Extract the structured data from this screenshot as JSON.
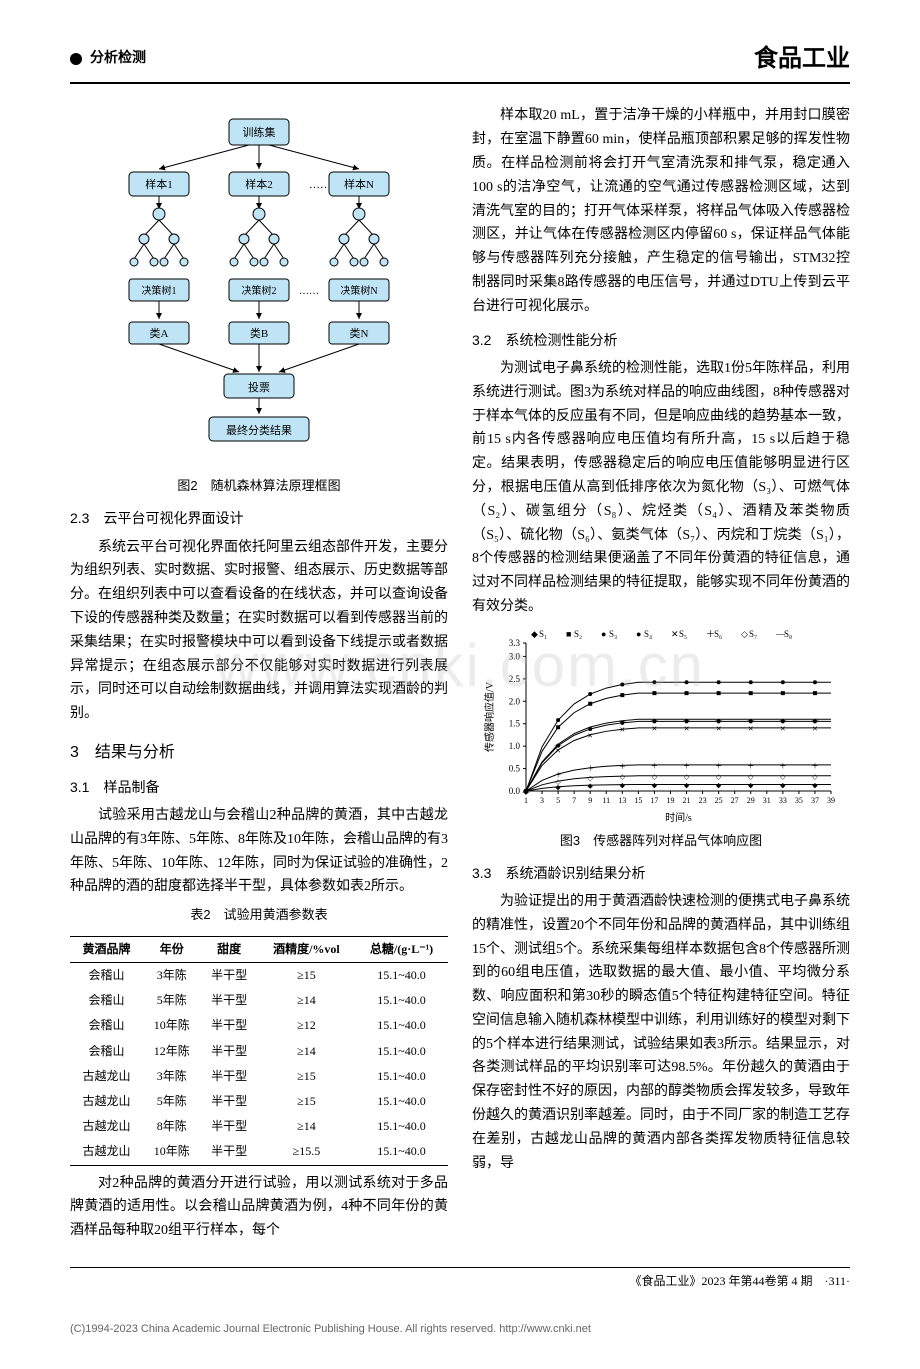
{
  "header": {
    "section": "分析检测",
    "journal": "食品工业"
  },
  "flowchart": {
    "title": "图2　随机森林算法原理框图",
    "nodes": {
      "train": "训练集",
      "sample1": "样本1",
      "sample2": "样本2",
      "sampleN": "样本N",
      "dots1": "……",
      "tree1": "决策树1",
      "tree2": "决策树2",
      "treeN": "决策树N",
      "dots2": "……",
      "classA": "类A",
      "classB": "类B",
      "classN": "类N",
      "vote": "投票",
      "result": "最终分类结果"
    },
    "node_fill": "#bfe4f5",
    "node_stroke": "#000000",
    "bg": "#ffffff",
    "fontsize": 11
  },
  "sec23": {
    "title": "2.3　云平台可视化界面设计",
    "p1": "系统云平台可视化界面依托阿里云组态部件开发，主要分为组织列表、实时数据、实时报警、组态展示、历史数据等部分。在组织列表中可以查看设备的在线状态，并可以查询设备下设的传感器种类及数量；在实时数据可以看到传感器当前的采集结果；在实时报警模块中可以看到设备下线提示或者数据异常提示；在组态展示部分不仅能够对实时数据进行列表展示，同时还可以自动绘制数据曲线，并调用算法实现酒龄的判别。"
  },
  "sec3": {
    "title": "3　结果与分析"
  },
  "sec31": {
    "title": "3.1　样品制备",
    "p1": "试验采用古越龙山与会稽山2种品牌的黄酒，其中古越龙山品牌的有3年陈、5年陈、8年陈及10年陈，会稽山品牌的有3年陈、5年陈、10年陈、12年陈，同时为保证试验的准确性，2种品牌的酒的甜度都选择半干型，具体参数如表2所示。"
  },
  "table2": {
    "caption": "表2　试验用黄酒参数表",
    "columns": [
      "黄酒品牌",
      "年份",
      "甜度",
      "酒精度/%vol",
      "总糖/(g·L⁻¹)"
    ],
    "rows": [
      [
        "会稽山",
        "3年陈",
        "半干型",
        "≥15",
        "15.1~40.0"
      ],
      [
        "会稽山",
        "5年陈",
        "半干型",
        "≥14",
        "15.1~40.0"
      ],
      [
        "会稽山",
        "10年陈",
        "半干型",
        "≥12",
        "15.1~40.0"
      ],
      [
        "会稽山",
        "12年陈",
        "半干型",
        "≥14",
        "15.1~40.0"
      ],
      [
        "古越龙山",
        "3年陈",
        "半干型",
        "≥15",
        "15.1~40.0"
      ],
      [
        "古越龙山",
        "5年陈",
        "半干型",
        "≥15",
        "15.1~40.0"
      ],
      [
        "古越龙山",
        "8年陈",
        "半干型",
        "≥14",
        "15.1~40.0"
      ],
      [
        "古越龙山",
        "10年陈",
        "半干型",
        "≥15.5",
        "15.1~40.0"
      ]
    ]
  },
  "after_table": {
    "p1": "对2种品牌的黄酒分开进行试验，用以测试系统对于多品牌黄酒的适用性。以会稽山品牌黄酒为例，4种不同年份的黄酒样品每种取20组平行样本，每个"
  },
  "rightcol": {
    "p1": "样本取20 mL，置于洁净干燥的小样瓶中，并用封口膜密封，在室温下静置60 min，使样品瓶顶部积累足够的挥发性物质。在样品检测前将会打开气室清洗泵和排气泵，稳定通入100 s的洁净空气，让流通的空气通过传感器检测区域，达到清洗气室的目的；打开气体采样泵，将样品气体吸入传感器检测区，并让气体在传感器检测区内停留60 s，保证样品气体能够与传感器阵列充分接触，产生稳定的信号输出，STM32控制器同时采集8路传感器的电压信号，并通过DTU上传到云平台进行可视化展示。"
  },
  "sec32": {
    "title": "3.2　系统检测性能分析",
    "p1": "为测试电子鼻系统的检测性能，选取1份5年陈样品，利用系统进行测试。图3为系统对样品的响应曲线图，8种传感器对于样本气体的反应虽有不同，但是响应曲线的趋势基本一致，前15 s内各传感器响应电压值均有所升高，15 s以后趋于稳定。结果表明，传感器稳定后的响应电压值能够明显进行区分，根据电压值从高到低排序依次为氮化物（S₃）、可燃气体（S₂）、碳氢组分（S₈）、烷烃类（S₄）、酒精及苯类物质（S₅）、硫化物（S₆）、氨类气体（S₇）、丙烷和丁烷类（S₁），8个传感器的检测结果便涵盖了不同年份黄酒的特征信息，通过对不同样品检测结果的特征提取，能够实现不同年份黄酒的有效分类。"
  },
  "chart3": {
    "caption": "图3　传感器阵列对样品气体响应图",
    "type": "line",
    "xlabel": "时间/s",
    "ylabel": "传感器响应值/V",
    "xlim": [
      1,
      39
    ],
    "ylim": [
      0,
      3.3
    ],
    "xticks": [
      1,
      3,
      5,
      7,
      9,
      11,
      13,
      15,
      17,
      19,
      21,
      23,
      25,
      27,
      29,
      31,
      33,
      35,
      37,
      39
    ],
    "yticks": [
      0,
      0.5,
      1.0,
      1.5,
      2.0,
      2.5,
      3.0,
      3.3
    ],
    "legend": [
      "S₁",
      "S₂",
      "S₃",
      "S₄",
      "S₅",
      "S₆",
      "S₇",
      "S₈"
    ],
    "markers": [
      "diamond",
      "square",
      "circle",
      "circle",
      "cross",
      "plus",
      "diamondopen",
      "line"
    ],
    "series_final": {
      "S1": 0.15,
      "S2": 2.25,
      "S3": 2.5,
      "S4": 1.6,
      "S5": 1.45,
      "S6": 0.6,
      "S7": 0.35,
      "S8": 1.65
    },
    "background_color": "#ffffff",
    "axis_color": "#000000",
    "line_color": "#000000",
    "fontsize": 9
  },
  "sec33": {
    "title": "3.3　系统酒龄识别结果分析",
    "p1": "为验证提出的用于黄酒酒龄快速检测的便携式电子鼻系统的精准性，设置20个不同年份和品牌的黄酒样品，其中训练组15个、测试组5个。系统采集每组样本数据包含8个传感器所测到的60组电压值，选取数据的最大值、最小值、平均微分系数、响应面积和第30秒的瞬态值5个特征构建特征空间。特征空间信息输入随机森林模型中训练，利用训练好的模型对剩下的5个样本进行结果测试，试验结果如表3所示。结果显示，对各类测试样品的平均识别率可达98.5%。年份越久的黄酒由于保存密封性不好的原因，内部的醇类物质会挥发较多，导致年份越久的黄酒识别率越差。同时，由于不同厂家的制造工艺存在差别，古越龙山品牌的黄酒内部各类挥发物质特征信息较弱，导"
  },
  "footer": {
    "journal": "《食品工业》2023 年第44卷第 4 期",
    "page": "·311·"
  },
  "copyright": "(C)1994-2023 China Academic Journal Electronic Publishing House. All rights reserved.    http://www.cnki.net",
  "watermark": "www.cnki.com.cn"
}
